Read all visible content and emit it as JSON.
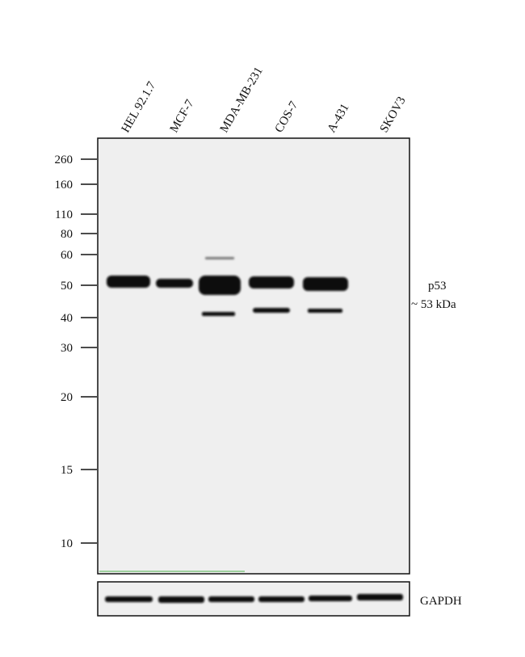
{
  "lanes": [
    "HEL 92.1.7",
    "MCF-7",
    "MDA-MB-231",
    "COS-7",
    "A-431",
    "SKOV3"
  ],
  "markers": [
    "260",
    "160",
    "110",
    "80",
    "60",
    "50",
    "40",
    "30",
    "20",
    "15",
    "10"
  ],
  "target": {
    "name": "p53",
    "size": "~ 53 kDa"
  },
  "loading_control": "GAPDH"
}
